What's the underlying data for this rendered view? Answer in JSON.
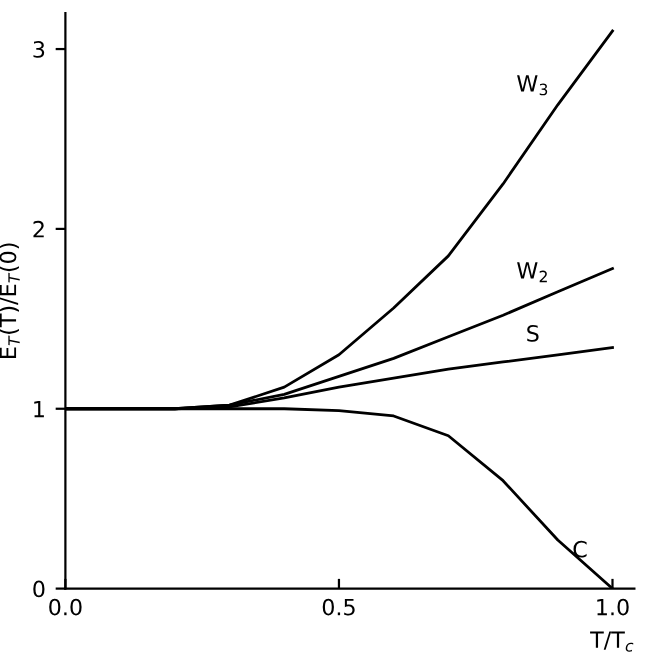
{
  "chart_data": {
    "type": "line",
    "x": [
      0,
      0.1,
      0.2,
      0.3,
      0.4,
      0.5,
      0.6,
      0.7,
      0.8,
      0.9,
      1.0
    ],
    "series": [
      {
        "name": "W$_{3}$",
        "color": "#000000",
        "values": [
          1,
          1,
          1.0,
          1.02,
          1.12,
          1.3,
          1.56,
          1.85,
          2.25,
          2.69,
          3.1
        ]
      },
      {
        "name": "W$_{2}$",
        "color": "#000000",
        "values": [
          1,
          1,
          1.0,
          1.02,
          1.08,
          1.18,
          1.28,
          1.4,
          1.52,
          1.65,
          1.78
        ]
      },
      {
        "name": "S",
        "color": "#000000",
        "values": [
          1,
          1,
          1.0,
          1.01,
          1.06,
          1.12,
          1.17,
          1.22,
          1.26,
          1.3,
          1.34
        ]
      },
      {
        "name": "C",
        "color": "#000000",
        "values": [
          1,
          1,
          1.0,
          1.0,
          1.0,
          0.99,
          0.96,
          0.85,
          0.6,
          0.27,
          0
        ]
      }
    ],
    "xlabel": "T/T$_{c}$",
    "ylabel": "E$_{T}$(T)/E$_{T}$(0)",
    "xlim": [
      0,
      1.04
    ],
    "ylim": [
      0,
      3.2
    ],
    "xticks": [
      {
        "value": 0,
        "label": "0.0"
      },
      {
        "value": 0.5,
        "label": "0.5"
      },
      {
        "value": 1.0,
        "label": "1.0"
      }
    ],
    "yticks": [
      0,
      1,
      2,
      3
    ],
    "grid": false,
    "legend": false
  }
}
